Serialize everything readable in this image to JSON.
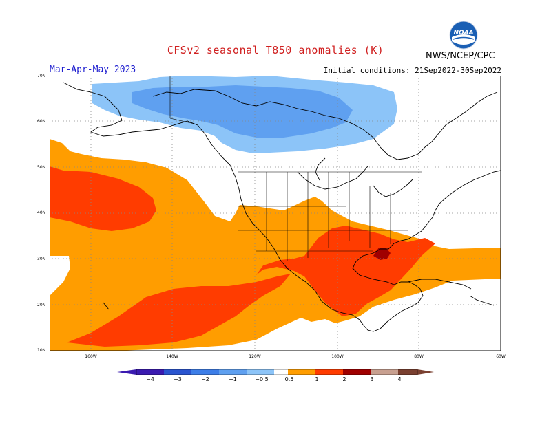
{
  "header": {
    "title": "CFSv2 seasonal T850 anomalies (K)",
    "season": "Mar-Apr-May 2023",
    "initial_conditions": "Initial conditions: 21Sep2022-30Sep2022",
    "agency": "NWS/NCEP/CPC",
    "logo_text": "NOAA"
  },
  "colors": {
    "title": "#d02020",
    "season": "#2020d0",
    "c_neg4": "#3a1ab0",
    "c_neg3": "#2a55d0",
    "c_neg2": "#3d7ee8",
    "c_neg1": "#5fa0f0",
    "c_neg05": "#8cc4f8",
    "c_pos05": "#ff9d00",
    "c_pos1": "#ff3c00",
    "c_pos2": "#a00000",
    "c_pos3": "#c8a090",
    "c_pos4": "#7a4030"
  },
  "map": {
    "lat_labels": [
      "70N",
      "60N",
      "50N",
      "40N",
      "30N",
      "20N",
      "10N"
    ],
    "lon_labels": [
      "160W",
      "140W",
      "120W",
      "100W",
      "80W",
      "60W"
    ]
  },
  "legend": {
    "labels": [
      "−4",
      "−3",
      "−2",
      "−1",
      "−0.5",
      "0.5",
      "1",
      "2",
      "3",
      "4"
    ]
  }
}
